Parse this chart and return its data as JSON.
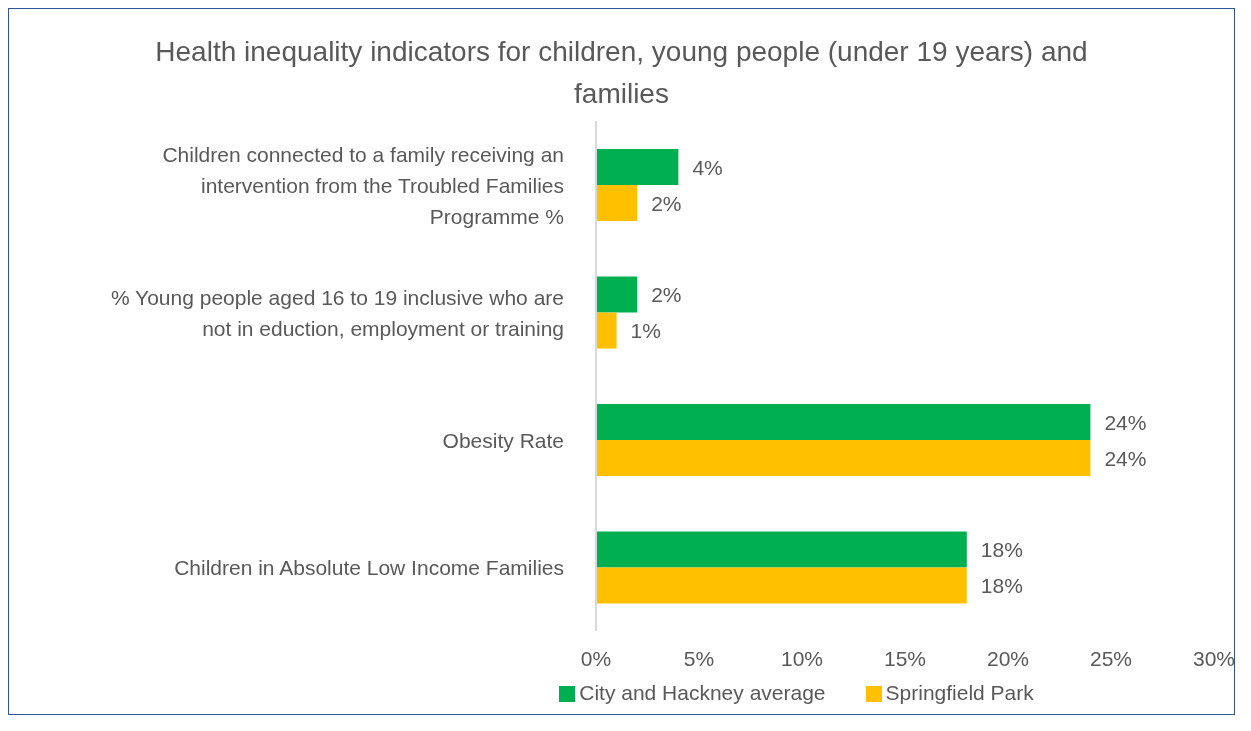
{
  "chart_data": {
    "type": "bar",
    "orientation": "horizontal",
    "title": "Health inequality indicators for children, young people (under 19 years) and families",
    "categories": [
      "Children connected to a family receiving an intervention from the Troubled Families Programme %",
      "% Young people aged 16 to 19 inclusive who are not in eduction, employment or training",
      "Obesity Rate",
      "Children in Absolute Low Income Families"
    ],
    "series": [
      {
        "name": "City and Hackney average",
        "color": "#00b050",
        "values": [
          4,
          2,
          24,
          18
        ],
        "value_labels": [
          "4%",
          "2%",
          "24%",
          "18%"
        ]
      },
      {
        "name": "Springfield Park",
        "color": "#ffc000",
        "values": [
          2,
          1,
          24,
          18
        ],
        "value_labels": [
          "2%",
          "1%",
          "24%",
          "18%"
        ]
      }
    ],
    "xlim": [
      0,
      30
    ],
    "xticks": [
      {
        "value": 0,
        "label": "0%"
      },
      {
        "value": 5,
        "label": "5%"
      },
      {
        "value": 10,
        "label": "10%"
      },
      {
        "value": 15,
        "label": "15%"
      },
      {
        "value": 20,
        "label": "20%"
      },
      {
        "value": 25,
        "label": "25%"
      },
      {
        "value": 30,
        "label": "30%"
      }
    ],
    "grid": false,
    "legend": "bottom"
  }
}
